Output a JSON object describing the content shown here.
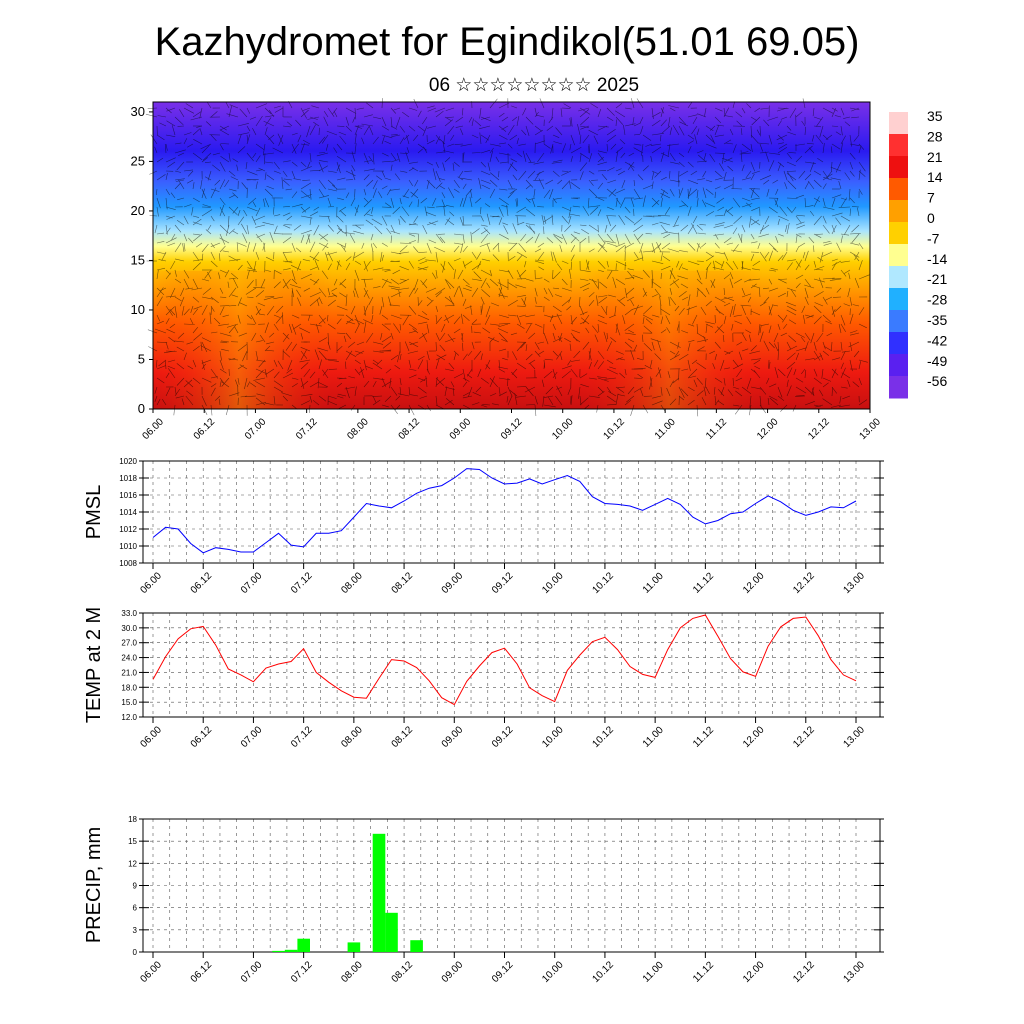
{
  "title": "Kazhydromet for Egindikol(51.01 69.05)",
  "subtitle": "06 ☆☆☆☆☆☆☆☆ 2025",
  "x_tick_labels": [
    "06.00",
    "06.12",
    "07.00",
    "07.12",
    "08.00",
    "08.12",
    "09.00",
    "09.12",
    "10.00",
    "10.12",
    "11.00",
    "11.12",
    "12.00",
    "12.12",
    "13.00"
  ],
  "chart_data": [
    {
      "type": "heatmap",
      "ylim": [
        0,
        31
      ],
      "y_ticks": [
        0,
        5,
        10,
        15,
        20,
        25,
        30
      ],
      "x_ticks": [
        "06.00",
        "06.12",
        "07.00",
        "07.12",
        "08.00",
        "08.12",
        "09.00",
        "09.12",
        "10.00",
        "10.12",
        "11.00",
        "11.12",
        "12.00",
        "12.12",
        "13.00"
      ],
      "colorbar_labels": [
        "35",
        "28",
        "21",
        "14",
        "7",
        "0",
        "-7",
        "-14",
        "-21",
        "-28",
        "-35",
        "-42",
        "-49",
        "-56"
      ],
      "colormap": [
        "#ffd0d0",
        "#ff3030",
        "#ee1010",
        "#ff5a00",
        "#ffa000",
        "#ffd000",
        "#ffff90",
        "#b0e8ff",
        "#20b0ff",
        "#3a7bff",
        "#3030ff",
        "#5a20f0",
        "#7a30e8"
      ],
      "description_note": ""
    },
    {
      "type": "line",
      "ylabel": "PMSL",
      "ylim": [
        1008,
        1020
      ],
      "y_ticks": [
        "1008",
        "1010",
        "1012",
        "1014",
        "1016",
        "1018",
        "1020"
      ],
      "color": "#0000ff",
      "series": [
        {
          "values": [
            1011.0,
            1012.2,
            1012.0,
            1010.3,
            1009.2,
            1009.8,
            1009.6,
            1009.3,
            1009.3,
            1010.4,
            1011.5,
            1010.1,
            1009.9,
            1011.5,
            1011.5,
            1011.8,
            1013.4,
            1015.0,
            1014.7,
            1014.5,
            1015.3,
            1016.2,
            1016.8,
            1017.1,
            1018.0,
            1019.1,
            1019.0,
            1018.0,
            1017.3,
            1017.4,
            1017.9,
            1017.3,
            1017.8,
            1018.3,
            1017.6,
            1015.8,
            1015.0,
            1014.9,
            1014.7,
            1014.2,
            1014.9,
            1015.6,
            1014.9,
            1013.4,
            1012.6,
            1013.0,
            1013.8,
            1014.0,
            1015.0,
            1015.9,
            1015.2,
            1014.2,
            1013.6,
            1014.0,
            1014.6,
            1014.5,
            1015.3
          ]
        }
      ]
    },
    {
      "type": "line",
      "ylabel": "TEMP at 2 M",
      "ylim": [
        12.0,
        33.0
      ],
      "y_ticks": [
        "12.0",
        "15.0",
        "18.0",
        "21.0",
        "24.0",
        "27.0",
        "30.0",
        "33.0"
      ],
      "color": "#ff0000",
      "series": [
        {
          "values": [
            19.6,
            24.2,
            27.8,
            29.8,
            30.3,
            26.5,
            21.7,
            20.5,
            19.1,
            21.9,
            22.7,
            23.2,
            25.8,
            21.0,
            19.0,
            17.3,
            16.0,
            15.8,
            19.8,
            23.6,
            23.3,
            22.0,
            19.3,
            15.9,
            14.5,
            19.2,
            22.3,
            25.0,
            25.9,
            22.7,
            17.9,
            16.3,
            15.1,
            21.4,
            24.5,
            27.2,
            28.1,
            25.6,
            22.2,
            20.6,
            20.0,
            25.6,
            30.0,
            31.9,
            32.6,
            28.3,
            23.8,
            21.1,
            20.2,
            26.3,
            30.2,
            31.9,
            32.2,
            28.4,
            23.6,
            20.5,
            19.3
          ]
        }
      ]
    },
    {
      "type": "bar",
      "ylabel": "PRECIP, mm",
      "ylim": [
        0,
        18
      ],
      "y_ticks": [
        "0",
        "3",
        "6",
        "9",
        "12",
        "15",
        "18"
      ],
      "color": "#00ff00",
      "series": [
        {
          "values": [
            0,
            0,
            0,
            0,
            0,
            0,
            0,
            0,
            0,
            0,
            0.15,
            0.3,
            1.8,
            0,
            0,
            0,
            1.3,
            0,
            16.0,
            5.3,
            0,
            1.6,
            0,
            0,
            0,
            0,
            0,
            0,
            0,
            0,
            0,
            0,
            0,
            0,
            0,
            0,
            0,
            0,
            0,
            0,
            0,
            0,
            0,
            0,
            0,
            0,
            0,
            0,
            0,
            0,
            0,
            0,
            0,
            0,
            0,
            0,
            0
          ]
        }
      ]
    }
  ]
}
